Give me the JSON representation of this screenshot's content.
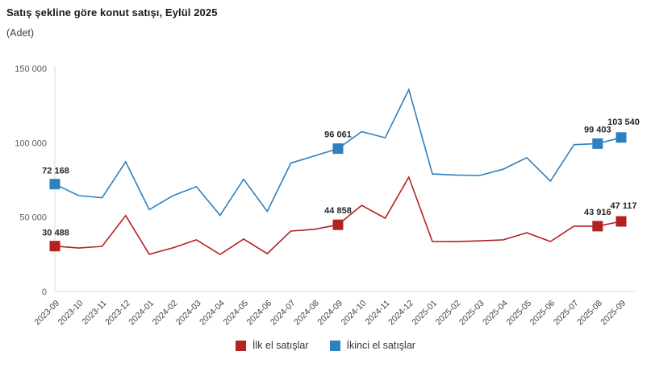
{
  "page": {
    "title": "Satış şekline göre konut satışı, Eylül 2025",
    "subtitle": "(Adet)"
  },
  "chart_data": {
    "type": "line",
    "title": "Satış şekline göre konut satışı, Eylül 2025",
    "ylabel": "(Adet)",
    "xlabel": "",
    "x": [
      "2023-09",
      "2023-10",
      "2023-11",
      "2023-12",
      "2024-01",
      "2024-02",
      "2024-03",
      "2024-04",
      "2024-05",
      "2024-06",
      "2024-07",
      "2024-08",
      "2024-09",
      "2024-10",
      "2024-11",
      "2024-12",
      "2025-01",
      "2025-02",
      "2025-03",
      "2025-04",
      "2025-05",
      "2025-06",
      "2025-07",
      "2025-08",
      "2025-09"
    ],
    "series": [
      {
        "name": "İlk el satışlar",
        "color": "#b22222",
        "values": [
          30488,
          29200,
          30300,
          51000,
          25000,
          29300,
          34700,
          24900,
          35200,
          25400,
          40600,
          41800,
          44858,
          57900,
          49300,
          76900,
          33600,
          33500,
          34000,
          34700,
          39500,
          33600,
          43900,
          43916,
          47117
        ],
        "label_indices": [
          0,
          12,
          23,
          24
        ],
        "labeled_values": [
          "30 488",
          "44 858",
          "43 916",
          "47 117"
        ]
      },
      {
        "name": "İkinci el satışlar",
        "color": "#2e80be",
        "values": [
          72168,
          64500,
          63000,
          87200,
          55000,
          64400,
          70500,
          51200,
          75500,
          53800,
          86300,
          91200,
          96061,
          107500,
          103400,
          135800,
          79000,
          78300,
          78000,
          82200,
          90000,
          74200,
          98700,
          99403,
          103540
        ],
        "label_indices": [
          0,
          12,
          23,
          24
        ],
        "labeled_values": [
          "72 168",
          "96 061",
          "99 403",
          "103 540"
        ]
      }
    ],
    "ylim": [
      0,
      150000
    ],
    "y_ticks": [
      0,
      50000,
      100000,
      150000
    ],
    "y_tick_labels": [
      "0",
      "50 000",
      "100 000",
      "150 000"
    ],
    "grid": false,
    "legend_position": "bottom",
    "marker": "square",
    "axis_color": "#d9d9d9"
  }
}
